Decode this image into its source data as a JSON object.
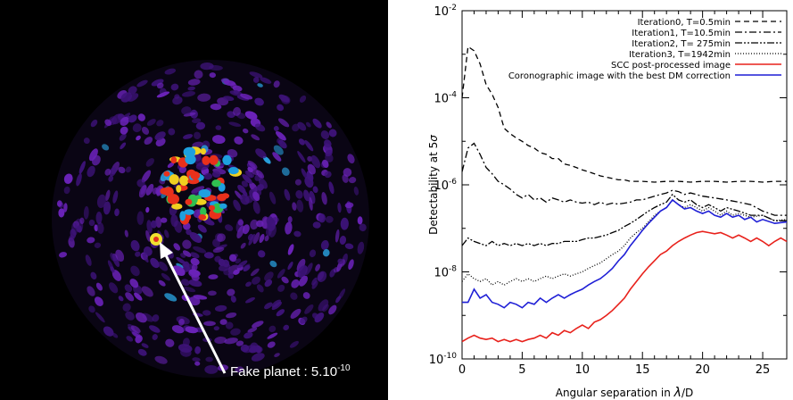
{
  "left_image": {
    "annotation": "Fake planet : 5.10",
    "annotation_exp": "-10"
  },
  "chart_data": {
    "type": "line",
    "xlabel_prefix": "Angular separation in ",
    "xlabel_lambda": "λ",
    "xlabel_suffix": "/D",
    "ylabel_prefix": "Detectability at 5",
    "ylabel_sigma": "σ",
    "xlim": [
      0,
      27
    ],
    "ylim": [
      1e-10,
      0.01
    ],
    "yscale": "log",
    "x_ticks": [
      "0",
      "5",
      "10",
      "15",
      "20",
      "25"
    ],
    "y_ticks": [
      {
        "base": "10",
        "exp": "-2"
      },
      {
        "base": "10",
        "exp": "-4"
      },
      {
        "base": "10",
        "exp": "-6"
      },
      {
        "base": "10",
        "exp": "-8"
      },
      {
        "base": "10",
        "exp": "-10"
      }
    ],
    "legend_position": "top-right",
    "series": [
      {
        "name": "Iteration0, T=0.5min",
        "color": "#000000",
        "dash": "6,4",
        "points": [
          [
            0,
            0.0001
          ],
          [
            0.5,
            0.0015
          ],
          [
            1,
            0.0012
          ],
          [
            1.5,
            0.0006
          ],
          [
            2,
            0.0002
          ],
          [
            2.5,
            0.00012
          ],
          [
            3,
            6e-05
          ],
          [
            3.5,
            2e-05
          ],
          [
            4,
            1.5e-05
          ],
          [
            4.5,
            1.2e-05
          ],
          [
            5,
            1e-05
          ],
          [
            5.5,
            8e-06
          ],
          [
            6,
            7e-06
          ],
          [
            6.5,
            5.5e-06
          ],
          [
            7,
            5e-06
          ],
          [
            7.5,
            4e-06
          ],
          [
            8,
            4e-06
          ],
          [
            8.5,
            3e-06
          ],
          [
            9,
            2.8e-06
          ],
          [
            9.5,
            2.5e-06
          ],
          [
            10,
            2.2e-06
          ],
          [
            10.5,
            2e-06
          ],
          [
            11,
            1.8e-06
          ],
          [
            11.5,
            1.6e-06
          ],
          [
            12,
            1.5e-06
          ],
          [
            12.5,
            1.4e-06
          ],
          [
            13,
            1.3e-06
          ],
          [
            13.5,
            1.3e-06
          ],
          [
            14,
            1.2e-06
          ],
          [
            15,
            1.2e-06
          ],
          [
            16,
            1.15e-06
          ],
          [
            17,
            1.2e-06
          ],
          [
            18,
            1.2e-06
          ],
          [
            19,
            1.15e-06
          ],
          [
            20,
            1.2e-06
          ],
          [
            21,
            1.2e-06
          ],
          [
            22,
            1.15e-06
          ],
          [
            23,
            1.2e-06
          ],
          [
            24,
            1.2e-06
          ],
          [
            25,
            1.15e-06
          ],
          [
            26,
            1.2e-06
          ],
          [
            27,
            1.2e-06
          ]
        ]
      },
      {
        "name": "Iteration1, T=10.5min",
        "color": "#000000",
        "dash": "8,3,2,3",
        "points": [
          [
            0,
            2e-06
          ],
          [
            0.5,
            7e-06
          ],
          [
            1,
            9e-06
          ],
          [
            1.5,
            5e-06
          ],
          [
            2,
            2.5e-06
          ],
          [
            2.5,
            1.8e-06
          ],
          [
            3,
            1.2e-06
          ],
          [
            3.5,
            1e-06
          ],
          [
            4,
            8e-07
          ],
          [
            4.5,
            6e-07
          ],
          [
            5,
            5e-07
          ],
          [
            5.5,
            6e-07
          ],
          [
            6,
            4.5e-07
          ],
          [
            6.5,
            5e-07
          ],
          [
            7,
            4e-07
          ],
          [
            7.5,
            5e-07
          ],
          [
            8,
            4.5e-07
          ],
          [
            8.5,
            4e-07
          ],
          [
            9,
            4.5e-07
          ],
          [
            9.5,
            4e-07
          ],
          [
            10,
            3.8e-07
          ],
          [
            10.5,
            4e-07
          ],
          [
            11,
            3.5e-07
          ],
          [
            11.5,
            4e-07
          ],
          [
            12,
            3.5e-07
          ],
          [
            12.5,
            3.8e-07
          ],
          [
            13,
            3.6e-07
          ],
          [
            13.5,
            3.8e-07
          ],
          [
            14,
            4e-07
          ],
          [
            14.5,
            4.5e-07
          ],
          [
            15,
            4.5e-07
          ],
          [
            15.5,
            5e-07
          ],
          [
            16,
            5.5e-07
          ],
          [
            16.5,
            6e-07
          ],
          [
            17,
            6.5e-07
          ],
          [
            17.5,
            7.5e-07
          ],
          [
            18,
            7e-07
          ],
          [
            18.5,
            6e-07
          ],
          [
            19,
            6.5e-07
          ],
          [
            20,
            5.5e-07
          ],
          [
            21,
            5e-07
          ],
          [
            22,
            4.5e-07
          ],
          [
            23,
            4e-07
          ],
          [
            24,
            3.5e-07
          ],
          [
            25,
            2.5e-07
          ],
          [
            26,
            2e-07
          ],
          [
            27,
            2e-07
          ]
        ]
      },
      {
        "name": "Iteration2, T= 275min",
        "color": "#000000",
        "dash": "8,2,2,2,2,2",
        "points": [
          [
            0,
            4e-08
          ],
          [
            0.5,
            6e-08
          ],
          [
            1,
            5e-08
          ],
          [
            1.5,
            4.5e-08
          ],
          [
            2,
            4e-08
          ],
          [
            2.5,
            5e-08
          ],
          [
            3,
            4e-08
          ],
          [
            3.5,
            4.5e-08
          ],
          [
            4,
            4e-08
          ],
          [
            4.5,
            4.5e-08
          ],
          [
            5,
            4e-08
          ],
          [
            5.5,
            4.5e-08
          ],
          [
            6,
            4e-08
          ],
          [
            6.5,
            4.5e-08
          ],
          [
            7,
            4e-08
          ],
          [
            7.5,
            4.5e-08
          ],
          [
            8,
            4.5e-08
          ],
          [
            8.5,
            5e-08
          ],
          [
            9,
            5e-08
          ],
          [
            9.5,
            5e-08
          ],
          [
            10,
            5.5e-08
          ],
          [
            10.5,
            6e-08
          ],
          [
            11,
            6e-08
          ],
          [
            11.5,
            6.5e-08
          ],
          [
            12,
            7e-08
          ],
          [
            12.5,
            8e-08
          ],
          [
            13,
            9e-08
          ],
          [
            13.5,
            1.1e-07
          ],
          [
            14,
            1.3e-07
          ],
          [
            14.5,
            1.6e-07
          ],
          [
            15,
            2e-07
          ],
          [
            15.5,
            2.5e-07
          ],
          [
            16,
            3e-07
          ],
          [
            16.5,
            3.5e-07
          ],
          [
            17,
            4e-07
          ],
          [
            17.5,
            6e-07
          ],
          [
            18,
            4.5e-07
          ],
          [
            18.5,
            4e-07
          ],
          [
            19,
            4.5e-07
          ],
          [
            19.5,
            3.5e-07
          ],
          [
            20,
            3e-07
          ],
          [
            20.5,
            3.5e-07
          ],
          [
            21,
            3e-07
          ],
          [
            21.5,
            2.5e-07
          ],
          [
            22,
            3e-07
          ],
          [
            23,
            2.5e-07
          ],
          [
            24,
            2e-07
          ],
          [
            25,
            2e-07
          ],
          [
            26,
            1.5e-07
          ],
          [
            27,
            1.5e-07
          ]
        ]
      },
      {
        "name": "Iteration3, T=1942min",
        "color": "#000000",
        "dash": "1,2",
        "points": [
          [
            0,
            6e-09
          ],
          [
            0.5,
            9e-09
          ],
          [
            1,
            7e-09
          ],
          [
            1.5,
            6e-09
          ],
          [
            2,
            7e-09
          ],
          [
            2.5,
            5e-09
          ],
          [
            3,
            6e-09
          ],
          [
            3.5,
            5e-09
          ],
          [
            4,
            6e-09
          ],
          [
            4.5,
            7e-09
          ],
          [
            5,
            6e-09
          ],
          [
            5.5,
            7e-09
          ],
          [
            6,
            6e-09
          ],
          [
            6.5,
            7e-09
          ],
          [
            7,
            8e-09
          ],
          [
            7.5,
            7e-09
          ],
          [
            8,
            8e-09
          ],
          [
            8.5,
            9e-09
          ],
          [
            9,
            8e-09
          ],
          [
            9.5,
            9e-09
          ],
          [
            10,
            1e-08
          ],
          [
            10.5,
            1.2e-08
          ],
          [
            11,
            1.4e-08
          ],
          [
            11.5,
            1.6e-08
          ],
          [
            12,
            2e-08
          ],
          [
            12.5,
            2.5e-08
          ],
          [
            13,
            3e-08
          ],
          [
            13.5,
            4e-08
          ],
          [
            14,
            6e-08
          ],
          [
            14.5,
            8e-08
          ],
          [
            15,
            1e-07
          ],
          [
            15.5,
            1.4e-07
          ],
          [
            16,
            2e-07
          ],
          [
            16.5,
            2.5e-07
          ],
          [
            17,
            3e-07
          ],
          [
            17.5,
            4.5e-07
          ],
          [
            18,
            3.5e-07
          ],
          [
            18.5,
            3e-07
          ],
          [
            19,
            3.5e-07
          ],
          [
            19.5,
            3e-07
          ],
          [
            20,
            2.5e-07
          ],
          [
            20.5,
            3e-07
          ],
          [
            21,
            2.5e-07
          ],
          [
            21.5,
            2e-07
          ],
          [
            22,
            2.5e-07
          ],
          [
            22.5,
            2e-07
          ],
          [
            23,
            2.2e-07
          ],
          [
            24,
            1.8e-07
          ],
          [
            25,
            2e-07
          ],
          [
            26,
            1.5e-07
          ],
          [
            27,
            1.6e-07
          ]
        ]
      },
      {
        "name": "SCC post-processed image",
        "color": "#e8211b",
        "dash": "",
        "points": [
          [
            0,
            2.5e-10
          ],
          [
            0.5,
            3e-10
          ],
          [
            1,
            3.5e-10
          ],
          [
            1.5,
            3e-10
          ],
          [
            2,
            2.8e-10
          ],
          [
            2.5,
            3e-10
          ],
          [
            3,
            2.5e-10
          ],
          [
            3.5,
            2.8e-10
          ],
          [
            4,
            2.5e-10
          ],
          [
            4.5,
            2.8e-10
          ],
          [
            5,
            2.5e-10
          ],
          [
            5.5,
            2.8e-10
          ],
          [
            6,
            3e-10
          ],
          [
            6.5,
            3.5e-10
          ],
          [
            7,
            3e-10
          ],
          [
            7.5,
            4e-10
          ],
          [
            8,
            3.5e-10
          ],
          [
            8.5,
            4.5e-10
          ],
          [
            9,
            4e-10
          ],
          [
            9.5,
            5e-10
          ],
          [
            10,
            6e-10
          ],
          [
            10.5,
            5e-10
          ],
          [
            11,
            7e-10
          ],
          [
            11.5,
            8e-10
          ],
          [
            12,
            1e-09
          ],
          [
            12.5,
            1.3e-09
          ],
          [
            13,
            1.8e-09
          ],
          [
            13.5,
            2.5e-09
          ],
          [
            14,
            4e-09
          ],
          [
            14.5,
            6e-09
          ],
          [
            15,
            9e-09
          ],
          [
            15.5,
            1.3e-08
          ],
          [
            16,
            1.8e-08
          ],
          [
            16.5,
            2.5e-08
          ],
          [
            17,
            3e-08
          ],
          [
            17.5,
            4e-08
          ],
          [
            18,
            5e-08
          ],
          [
            18.5,
            6e-08
          ],
          [
            19,
            7e-08
          ],
          [
            19.5,
            8e-08
          ],
          [
            20,
            8.5e-08
          ],
          [
            20.5,
            8e-08
          ],
          [
            21,
            7.5e-08
          ],
          [
            21.5,
            8e-08
          ],
          [
            22,
            7e-08
          ],
          [
            22.5,
            6e-08
          ],
          [
            23,
            7e-08
          ],
          [
            23.5,
            6e-08
          ],
          [
            24,
            5e-08
          ],
          [
            24.5,
            6e-08
          ],
          [
            25,
            5e-08
          ],
          [
            25.5,
            4e-08
          ],
          [
            26,
            5e-08
          ],
          [
            26.5,
            6e-08
          ],
          [
            27,
            5e-08
          ]
        ]
      },
      {
        "name": "Coronographic image with the best DM correction",
        "color": "#1f1fd6",
        "dash": "",
        "points": [
          [
            0,
            2e-09
          ],
          [
            0.5,
            2e-09
          ],
          [
            1,
            4e-09
          ],
          [
            1.5,
            2.5e-09
          ],
          [
            2,
            3e-09
          ],
          [
            2.5,
            2e-09
          ],
          [
            3,
            1.8e-09
          ],
          [
            3.5,
            1.5e-09
          ],
          [
            4,
            2e-09
          ],
          [
            4.5,
            1.8e-09
          ],
          [
            5,
            1.5e-09
          ],
          [
            5.5,
            2e-09
          ],
          [
            6,
            1.8e-09
          ],
          [
            6.5,
            2.5e-09
          ],
          [
            7,
            2e-09
          ],
          [
            7.5,
            2.5e-09
          ],
          [
            8,
            3e-09
          ],
          [
            8.5,
            2.5e-09
          ],
          [
            9,
            3e-09
          ],
          [
            9.5,
            3.5e-09
          ],
          [
            10,
            4e-09
          ],
          [
            10.5,
            5e-09
          ],
          [
            11,
            6e-09
          ],
          [
            11.5,
            7e-09
          ],
          [
            12,
            9e-09
          ],
          [
            12.5,
            1.2e-08
          ],
          [
            13,
            1.8e-08
          ],
          [
            13.5,
            2.5e-08
          ],
          [
            14,
            4e-08
          ],
          [
            14.5,
            6e-08
          ],
          [
            15,
            9e-08
          ],
          [
            15.5,
            1.3e-07
          ],
          [
            16,
            1.8e-07
          ],
          [
            16.5,
            2.5e-07
          ],
          [
            17,
            3e-07
          ],
          [
            17.5,
            4.5e-07
          ],
          [
            18,
            3.5e-07
          ],
          [
            18.5,
            2.8e-07
          ],
          [
            19,
            3e-07
          ],
          [
            19.5,
            2.5e-07
          ],
          [
            20,
            2.2e-07
          ],
          [
            20.5,
            2.5e-07
          ],
          [
            21,
            2e-07
          ],
          [
            21.5,
            1.8e-07
          ],
          [
            22,
            2.2e-07
          ],
          [
            22.5,
            1.8e-07
          ],
          [
            23,
            2e-07
          ],
          [
            23.5,
            1.6e-07
          ],
          [
            24,
            1.8e-07
          ],
          [
            24.5,
            1.4e-07
          ],
          [
            25,
            1.6e-07
          ],
          [
            26,
            1.3e-07
          ],
          [
            27,
            1.4e-07
          ]
        ]
      }
    ]
  }
}
